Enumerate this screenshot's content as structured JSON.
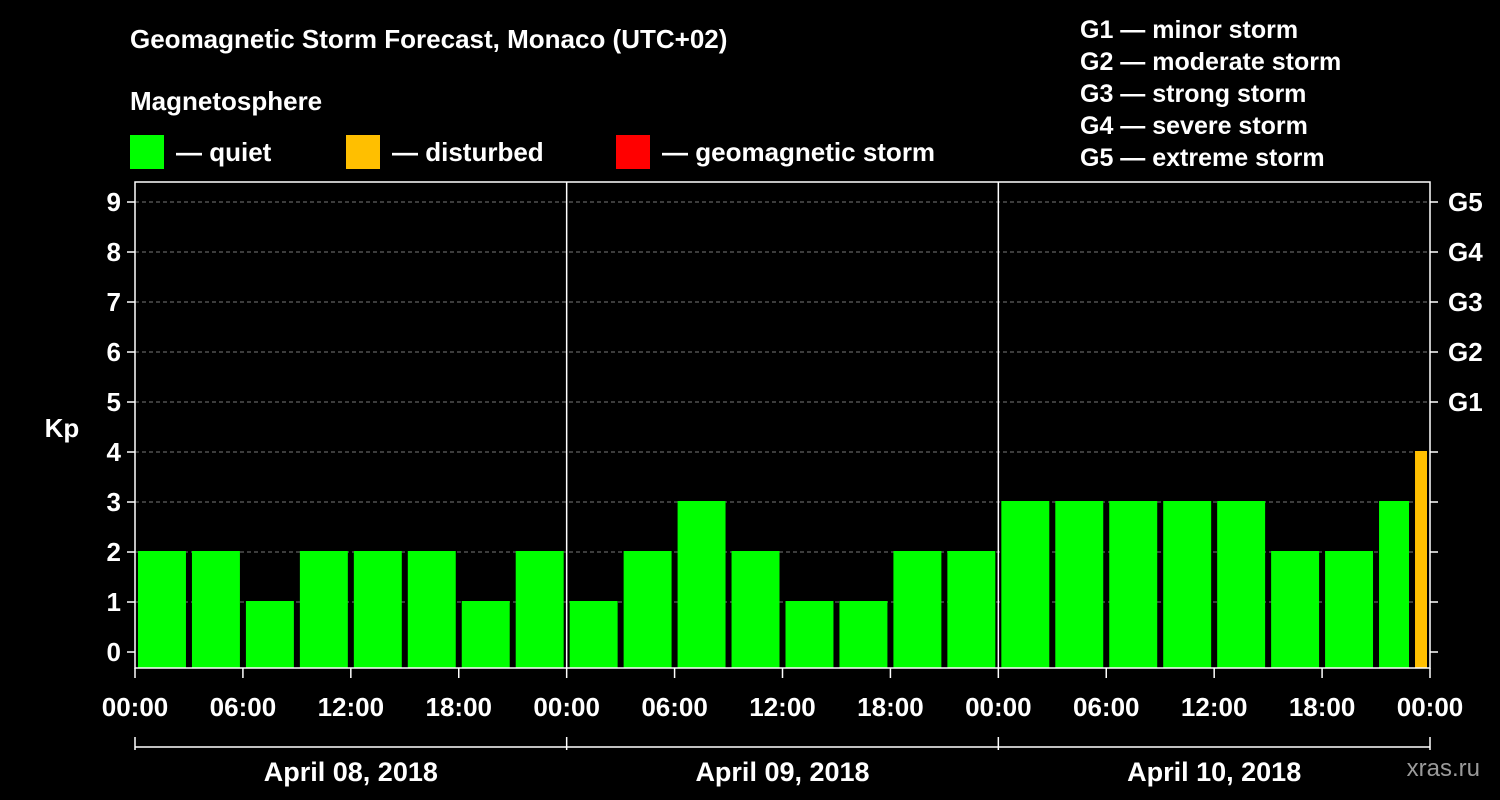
{
  "header": {
    "title": "Geomagnetic Storm Forecast, Monaco (UTC+02)",
    "subtitle": "Magnetosphere"
  },
  "legend": [
    {
      "label": "— quiet",
      "color": "#00ff00"
    },
    {
      "label": "— disturbed",
      "color": "#ffbf00"
    },
    {
      "label": "— geomagnetic storm",
      "color": "#ff0000"
    }
  ],
  "g_scale": [
    "G1 — minor storm",
    "G2 — moderate storm",
    "G3 — strong storm",
    "G4 — severe storm",
    "G5 — extreme storm"
  ],
  "watermark": "xras.ru",
  "chart_data": {
    "type": "bar",
    "ylabel": "Kp",
    "ylim": [
      0,
      9
    ],
    "y_ticks": [
      0,
      1,
      2,
      3,
      4,
      5,
      6,
      7,
      8,
      9
    ],
    "y2_ticks": [
      {
        "kp": 5,
        "label": "G1"
      },
      {
        "kp": 6,
        "label": "G2"
      },
      {
        "kp": 7,
        "label": "G3"
      },
      {
        "kp": 8,
        "label": "G4"
      },
      {
        "kp": 9,
        "label": "G5"
      }
    ],
    "grid": true,
    "x_tick_labels": [
      "00:00",
      "06:00",
      "12:00",
      "18:00",
      "00:00",
      "06:00",
      "12:00",
      "18:00",
      "00:00",
      "06:00",
      "12:00",
      "18:00",
      "00:00"
    ],
    "days": [
      "April 08, 2018",
      "April 09, 2018",
      "April 10, 2018"
    ],
    "colors": {
      "quiet": "#00ff00",
      "disturbed": "#ffbf00",
      "storm": "#ff0000"
    },
    "bars": [
      {
        "start": "2018-04-08 00:00",
        "kp": 2,
        "status": "quiet"
      },
      {
        "start": "2018-04-08 03:00",
        "kp": 2,
        "status": "quiet"
      },
      {
        "start": "2018-04-08 06:00",
        "kp": 1,
        "status": "quiet"
      },
      {
        "start": "2018-04-08 09:00",
        "kp": 2,
        "status": "quiet"
      },
      {
        "start": "2018-04-08 12:00",
        "kp": 2,
        "status": "quiet"
      },
      {
        "start": "2018-04-08 15:00",
        "kp": 2,
        "status": "quiet"
      },
      {
        "start": "2018-04-08 18:00",
        "kp": 1,
        "status": "quiet"
      },
      {
        "start": "2018-04-08 21:00",
        "kp": 2,
        "status": "quiet"
      },
      {
        "start": "2018-04-09 00:00",
        "kp": 1,
        "status": "quiet"
      },
      {
        "start": "2018-04-09 03:00",
        "kp": 2,
        "status": "quiet"
      },
      {
        "start": "2018-04-09 06:00",
        "kp": 3,
        "status": "quiet"
      },
      {
        "start": "2018-04-09 09:00",
        "kp": 2,
        "status": "quiet"
      },
      {
        "start": "2018-04-09 12:00",
        "kp": 1,
        "status": "quiet"
      },
      {
        "start": "2018-04-09 15:00",
        "kp": 1,
        "status": "quiet"
      },
      {
        "start": "2018-04-09 18:00",
        "kp": 2,
        "status": "quiet"
      },
      {
        "start": "2018-04-09 21:00",
        "kp": 2,
        "status": "quiet"
      },
      {
        "start": "2018-04-10 00:00",
        "kp": 3,
        "status": "quiet"
      },
      {
        "start": "2018-04-10 03:00",
        "kp": 3,
        "status": "quiet"
      },
      {
        "start": "2018-04-10 06:00",
        "kp": 3,
        "status": "quiet"
      },
      {
        "start": "2018-04-10 09:00",
        "kp": 3,
        "status": "quiet"
      },
      {
        "start": "2018-04-10 12:00",
        "kp": 3,
        "status": "quiet"
      },
      {
        "start": "2018-04-10 15:00",
        "kp": 2,
        "status": "quiet"
      },
      {
        "start": "2018-04-10 18:00",
        "kp": 2,
        "status": "quiet"
      },
      {
        "start": "2018-04-10 21:00",
        "kp": 3,
        "status": "quiet"
      },
      {
        "start": "2018-04-10 23:00",
        "kp": 4,
        "status": "disturbed"
      }
    ]
  }
}
